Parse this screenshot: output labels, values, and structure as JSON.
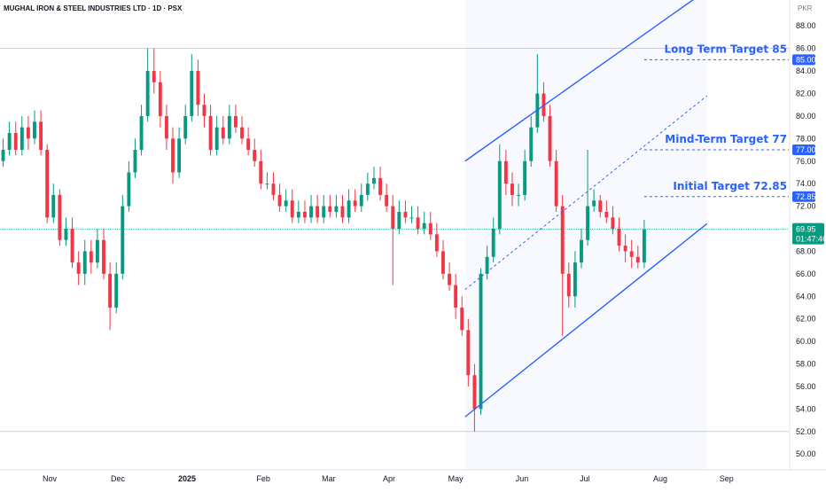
{
  "chart_data": {
    "type": "candlestick",
    "title": "MUGHAL IRON & STEEL INDUSTRIES LTD · 1D · PSX",
    "currency": "PKR",
    "up_color": "#089981",
    "down_color": "#f23645",
    "x": [
      0,
      2,
      4,
      6,
      8,
      10,
      12,
      14,
      16,
      18,
      20,
      22,
      24,
      26,
      28,
      30,
      32,
      34,
      36,
      38,
      40,
      42,
      44,
      46,
      48,
      50,
      52,
      54,
      56,
      58,
      60,
      62,
      64,
      66,
      68,
      70,
      72,
      74,
      76,
      78,
      80,
      82,
      84,
      86,
      88,
      90,
      92,
      94,
      96,
      98,
      100,
      102,
      104,
      106,
      108,
      110,
      112,
      114,
      116,
      118,
      120,
      122,
      124,
      126,
      128,
      130,
      132,
      134,
      136,
      138,
      140,
      142,
      144,
      146,
      148,
      150,
      152,
      154,
      156,
      158,
      160,
      162,
      164,
      166,
      168,
      170,
      172,
      174,
      176,
      178,
      180,
      182,
      184,
      186,
      188,
      190,
      192,
      194,
      196,
      198,
      200,
      202,
      204
    ],
    "open": [
      76,
      77,
      78.5,
      77,
      79,
      78,
      79.5,
      77,
      71,
      73,
      69,
      70,
      67,
      66,
      68,
      67,
      69,
      66,
      63,
      66,
      72,
      75,
      77,
      80,
      84,
      83,
      80,
      78,
      75,
      78,
      80,
      84,
      81,
      80,
      77,
      79,
      78,
      80,
      79,
      78,
      77,
      76,
      74,
      74,
      73,
      72,
      72.5,
      71,
      71.5,
      71,
      72,
      71,
      72,
      71.5,
      72,
      71,
      72.5,
      72,
      73,
      74,
      74.5,
      73,
      72,
      70,
      71.5,
      71,
      71,
      70,
      70.5,
      69.5,
      68,
      66,
      65,
      63,
      61,
      57,
      54,
      66,
      67.5,
      70,
      76,
      74,
      73,
      73,
      76,
      79,
      82,
      80,
      76,
      72,
      66,
      64,
      67,
      69,
      72,
      72.5,
      71.5,
      71,
      70,
      68.5,
      68,
      67.5,
      67
    ],
    "high": [
      78,
      79.5,
      79.5,
      80,
      80,
      80.5,
      80.5,
      77.5,
      74,
      73.5,
      71,
      71,
      68,
      69,
      69,
      70,
      70,
      67,
      67,
      73,
      76,
      78,
      81,
      86,
      86,
      84,
      81,
      79,
      79,
      81,
      85.5,
      85,
      82,
      81,
      80,
      80,
      81,
      81,
      80,
      79,
      78,
      77,
      75,
      75,
      74,
      73.5,
      73.5,
      72.5,
      72.5,
      73,
      73,
      73,
      73,
      73,
      73,
      73.5,
      73.5,
      74,
      75,
      75.5,
      75.5,
      74,
      73,
      72.5,
      72.5,
      72,
      72,
      71.5,
      71.5,
      70.5,
      69,
      67,
      66,
      64,
      62,
      58,
      66.5,
      68.5,
      71,
      77.5,
      77,
      75,
      74,
      77,
      80,
      85.5,
      83,
      81,
      77,
      73,
      67,
      68,
      70,
      77,
      73.5,
      73,
      72.5,
      72,
      71,
      69.5,
      69,
      68.5,
      70.8
    ],
    "low": [
      75.5,
      76.5,
      76.5,
      76.5,
      77,
      77.5,
      76.5,
      70.5,
      70.5,
      68.5,
      68.5,
      66.5,
      65,
      65,
      66,
      66.5,
      65.5,
      61,
      62.5,
      65.5,
      71.5,
      74.5,
      76.5,
      79.5,
      82,
      79,
      77,
      74,
      74.5,
      77.5,
      79.5,
      80,
      79,
      76.5,
      76.5,
      77.5,
      77.5,
      78.5,
      77.5,
      76.5,
      75.5,
      73.5,
      73.5,
      72.5,
      71.5,
      71.5,
      70.5,
      70.5,
      70.5,
      70.5,
      70.5,
      70.5,
      71,
      71,
      70.5,
      70.5,
      71.5,
      71.5,
      72.5,
      73.5,
      72.5,
      71.5,
      65,
      69.5,
      70.5,
      70.5,
      69.5,
      69.5,
      69,
      67.5,
      65.5,
      64.5,
      62,
      60.5,
      56,
      52,
      53.5,
      65.5,
      67,
      69.5,
      73,
      72,
      72,
      72.5,
      75.5,
      78.5,
      79.5,
      75.5,
      71.5,
      60.5,
      63,
      63,
      66.5,
      68.5,
      71.5,
      71,
      70.5,
      69.5,
      68,
      67,
      66.5,
      66.5,
      66.5
    ],
    "close": [
      77,
      78.5,
      77,
      79,
      78,
      79.5,
      77,
      71,
      73,
      69,
      70,
      67,
      66,
      68,
      67,
      69,
      66,
      63,
      66,
      72,
      75,
      77,
      80,
      84,
      83,
      80,
      78,
      75,
      78,
      80,
      84,
      81,
      80,
      77,
      79,
      78,
      80,
      79,
      78,
      77,
      76,
      74,
      74,
      73,
      72,
      72.5,
      71,
      71.5,
      71,
      72,
      71,
      72,
      71.5,
      72,
      71,
      72.5,
      72,
      73,
      74,
      74.5,
      73,
      72,
      70,
      71.5,
      71,
      71,
      70,
      70.5,
      69.5,
      68,
      66,
      65,
      63,
      61,
      57,
      54,
      66,
      67.5,
      70,
      76,
      74,
      73,
      73,
      76,
      79,
      82,
      80,
      76,
      72,
      66,
      64,
      67,
      69,
      72,
      72.5,
      71.5,
      71,
      70,
      68.5,
      68,
      67.5,
      67,
      69.95
    ],
    "xlim": [
      -1,
      250
    ],
    "xticks": [
      {
        "value": 14.8,
        "label": "Nov"
      },
      {
        "value": 36.5,
        "label": "Dec"
      },
      {
        "value": 58.5,
        "label": "2025"
      },
      {
        "value": 82.8,
        "label": "Feb"
      },
      {
        "value": 103.6,
        "label": "Mar"
      },
      {
        "value": 122.8,
        "label": "Apr"
      },
      {
        "value": 144,
        "label": "May"
      },
      {
        "value": 165.1,
        "label": "Jun"
      },
      {
        "value": 185.1,
        "label": "Jul"
      },
      {
        "value": 209.1,
        "label": "Aug"
      },
      {
        "value": 230.2,
        "label": "Sep"
      }
    ],
    "ylim": [
      48.6,
      90.3
    ],
    "yticks": [
      {
        "value": 50,
        "label": "50.00"
      },
      {
        "value": 52,
        "label": "52.00"
      },
      {
        "value": 54,
        "label": "54.00"
      },
      {
        "value": 56,
        "label": "56.00"
      },
      {
        "value": 58,
        "label": "58.00"
      },
      {
        "value": 60,
        "label": "60.00"
      },
      {
        "value": 62,
        "label": "62.00"
      },
      {
        "value": 64,
        "label": "64.00"
      },
      {
        "value": 66,
        "label": "66.00"
      },
      {
        "value": 68,
        "label": "68.00"
      },
      {
        "value": 72,
        "label": "72.00"
      },
      {
        "value": 74,
        "label": "74.00"
      },
      {
        "value": 76,
        "label": "76.00"
      },
      {
        "value": 78,
        "label": "78.00"
      },
      {
        "value": 80,
        "label": "80.00"
      },
      {
        "value": 82,
        "label": "82.00"
      },
      {
        "value": 84,
        "label": "84.00"
      },
      {
        "value": 86,
        "label": "86.00"
      },
      {
        "value": 88,
        "label": "88.00"
      }
    ],
    "hlines": [
      86,
      52
    ],
    "channel": {
      "x": [
        147,
        224
      ],
      "upper": [
        76,
        91.2
      ],
      "middle": [
        64.6,
        81.8
      ],
      "lower": [
        53.3,
        70.45
      ],
      "color": "#2962ff"
    },
    "targets": [
      {
        "text": "Long Term Target 85",
        "value": 85,
        "label": "85.00",
        "x": 204
      },
      {
        "text": "Mind-Term Target 77",
        "value": 77,
        "label": "77.00",
        "x": 204
      },
      {
        "text": "Initial Target 72.85",
        "value": 72.85,
        "label": "72.85",
        "x": 204
      }
    ],
    "last_price": {
      "value": 69.95,
      "label": "69.95"
    },
    "countdown": "01:47:46"
  }
}
